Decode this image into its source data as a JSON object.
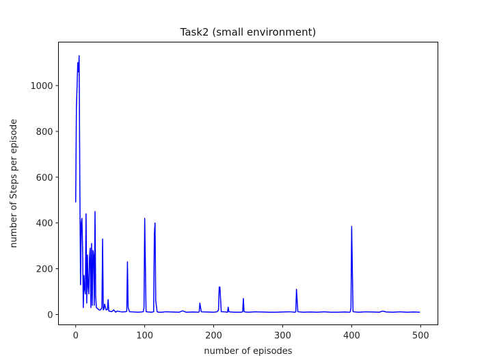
{
  "chart_data": {
    "type": "line",
    "title": "Task2 (small environment)",
    "xlabel": "number of episodes",
    "ylabel": "number of Steps per episode",
    "xlim": [
      -25,
      525
    ],
    "ylim": [
      -45,
      1190
    ],
    "xticks": [
      0,
      100,
      200,
      300,
      400,
      500
    ],
    "yticks": [
      0,
      200,
      400,
      600,
      800,
      1000
    ],
    "grid": false,
    "legend": "none",
    "line_color": "#0000ff",
    "series": [
      {
        "x": [
          0,
          1,
          2,
          3,
          4,
          5,
          6,
          7,
          8,
          9,
          10,
          11,
          12,
          13,
          14,
          15,
          16,
          17,
          18,
          19,
          20,
          21,
          22,
          23,
          24,
          25,
          26,
          27,
          28,
          29,
          30,
          32,
          34,
          36,
          38,
          39,
          40,
          41,
          42,
          44,
          46,
          47,
          48,
          50,
          52,
          55,
          58,
          60,
          62,
          65,
          68,
          70,
          72,
          74,
          75,
          76,
          78,
          80,
          85,
          90,
          95,
          98,
          99,
          100,
          102,
          105,
          110,
          113,
          114,
          115,
          116,
          118,
          120,
          125,
          130,
          140,
          150,
          155,
          160,
          170,
          178,
          179,
          180,
          182,
          190,
          200,
          205,
          207,
          208,
          209,
          211,
          215,
          220,
          221,
          222,
          225,
          230,
          240,
          242,
          243,
          244,
          246,
          250,
          260,
          270,
          280,
          290,
          300,
          310,
          318,
          319,
          320,
          322,
          330,
          340,
          350,
          360,
          370,
          380,
          390,
          397,
          398,
          399,
          400,
          402,
          410,
          420,
          430,
          440,
          445,
          450,
          460,
          470,
          480,
          490,
          499
        ],
        "y": [
          490,
          900,
          1000,
          1100,
          1060,
          1130,
          560,
          130,
          400,
          420,
          290,
          30,
          170,
          110,
          90,
          440,
          50,
          260,
          120,
          90,
          250,
          290,
          30,
          310,
          40,
          280,
          260,
          40,
          450,
          80,
          30,
          25,
          20,
          20,
          30,
          330,
          20,
          25,
          45,
          20,
          22,
          65,
          15,
          14,
          12,
          20,
          10,
          15,
          14,
          12,
          11,
          12,
          12,
          14,
          230,
          30,
          12,
          12,
          11,
          10,
          11,
          12,
          30,
          420,
          12,
          11,
          10,
          12,
          350,
          400,
          60,
          12,
          10,
          10,
          12,
          11,
          10,
          16,
          10,
          11,
          10,
          12,
          50,
          12,
          11,
          10,
          12,
          20,
          120,
          120,
          12,
          12,
          10,
          32,
          12,
          11,
          10,
          10,
          12,
          70,
          12,
          11,
          10,
          12,
          11,
          10,
          10,
          11,
          12,
          10,
          12,
          110,
          12,
          10,
          11,
          10,
          12,
          10,
          10,
          11,
          10,
          12,
          30,
          385,
          12,
          10,
          12,
          11,
          10,
          15,
          11,
          10,
          12,
          10,
          11,
          10
        ]
      }
    ]
  }
}
